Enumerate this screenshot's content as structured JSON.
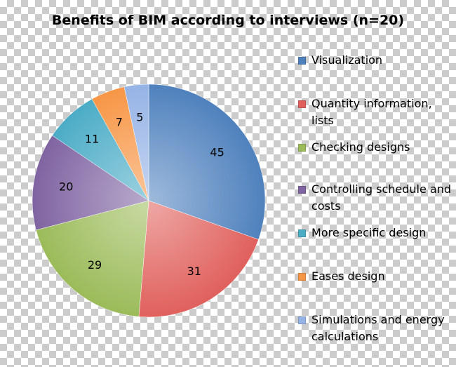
{
  "chart_data": {
    "type": "pie",
    "title": "Benefits of BIM according to interviews (n=20)",
    "legend_position": "right",
    "series": [
      {
        "name": "Visualization",
        "value": 45,
        "color": "#4F81BD"
      },
      {
        "name": "Quantity information, lists",
        "value": 31,
        "color": "#E0605C"
      },
      {
        "name": "Checking designs",
        "value": 29,
        "color": "#9BBB59"
      },
      {
        "name": "Controlling schedule and costs",
        "value": 20,
        "color": "#8064A2"
      },
      {
        "name": "More specific design",
        "value": 11,
        "color": "#4BACC6"
      },
      {
        "name": "Eases design",
        "value": 7,
        "color": "#F79646"
      },
      {
        "name": "Simulations and energy calculations",
        "value": 5,
        "color": "#95B3E6"
      }
    ]
  }
}
